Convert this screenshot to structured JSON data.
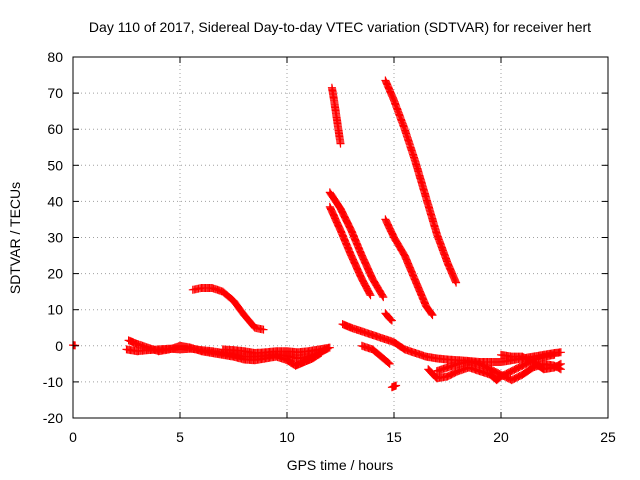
{
  "chart_data": {
    "type": "scatter",
    "title": "Day 110 of 2017, Sidereal Day-to-day VTEC variation (SDTVAR) for receiver hert",
    "xlabel": "GPS time / hours",
    "ylabel": "SDTVAR / TECUs",
    "xlim": [
      0,
      25
    ],
    "ylim": [
      -20,
      80
    ],
    "xticks": [
      0,
      5,
      10,
      15,
      20,
      25
    ],
    "yticks": [
      -20,
      -10,
      0,
      10,
      20,
      30,
      40,
      50,
      60,
      70,
      80
    ],
    "grid": true,
    "marker": "+",
    "color": "#ff0000",
    "series": [
      {
        "name": "isolated-near-zero",
        "points": [
          [
            0.0,
            0.2
          ],
          [
            0.1,
            0.1
          ]
        ]
      },
      {
        "name": "baseline-early-a",
        "points": [
          [
            2.5,
            -1.0
          ],
          [
            3.0,
            -1.5
          ],
          [
            3.5,
            -1.2
          ],
          [
            4.0,
            -1.0
          ],
          [
            4.5,
            -0.8
          ],
          [
            5.0,
            -1.0
          ],
          [
            5.5,
            -0.8
          ],
          [
            6.0,
            -1.2
          ],
          [
            6.5,
            -1.5
          ],
          [
            7.0,
            -2.0
          ],
          [
            7.5,
            -2.5
          ],
          [
            8.0,
            -3.0
          ],
          [
            8.5,
            -3.0
          ],
          [
            9.0,
            -2.8
          ],
          [
            9.5,
            -2.5
          ],
          [
            10.0,
            -2.8
          ],
          [
            10.5,
            -3.5
          ],
          [
            11.0,
            -3.0
          ],
          [
            11.5,
            -2.0
          ],
          [
            11.9,
            -0.8
          ]
        ]
      },
      {
        "name": "baseline-early-b",
        "points": [
          [
            2.6,
            1.5
          ],
          [
            3.0,
            0.5
          ],
          [
            3.5,
            -0.5
          ],
          [
            4.0,
            -1.5
          ],
          [
            4.5,
            -1.0
          ],
          [
            5.0,
            0.0
          ],
          [
            5.5,
            -0.5
          ],
          [
            6.0,
            -1.5
          ],
          [
            6.5,
            -2.0
          ],
          [
            7.0,
            -2.5
          ],
          [
            7.5,
            -3.0
          ],
          [
            8.0,
            -3.8
          ],
          [
            8.5,
            -4.0
          ],
          [
            9.0,
            -3.5
          ],
          [
            9.5,
            -3.0
          ],
          [
            10.0,
            -4.0
          ],
          [
            10.4,
            -5.5
          ],
          [
            10.8,
            -4.5
          ],
          [
            11.2,
            -3.5
          ],
          [
            11.6,
            -2.0
          ]
        ]
      },
      {
        "name": "baseline-early-c",
        "points": [
          [
            7.0,
            -1.0
          ],
          [
            7.5,
            -1.2
          ],
          [
            8.0,
            -1.5
          ],
          [
            8.5,
            -2.0
          ],
          [
            9.0,
            -1.8
          ],
          [
            9.5,
            -1.5
          ],
          [
            10.0,
            -1.5
          ],
          [
            10.5,
            -1.8
          ],
          [
            11.0,
            -1.5
          ],
          [
            11.5,
            -1.0
          ],
          [
            12.0,
            -0.5
          ]
        ]
      },
      {
        "name": "arc-morning",
        "points": [
          [
            5.6,
            15.5
          ],
          [
            6.0,
            16.0
          ],
          [
            6.5,
            16.0
          ],
          [
            7.0,
            15.0
          ],
          [
            7.5,
            12.5
          ],
          [
            8.0,
            8.5
          ],
          [
            8.5,
            5.0
          ],
          [
            8.9,
            4.5
          ]
        ]
      },
      {
        "name": "steep-short",
        "points": [
          [
            12.1,
            71.5
          ],
          [
            12.2,
            68.0
          ],
          [
            12.3,
            64.0
          ],
          [
            12.4,
            60.0
          ],
          [
            12.5,
            56.0
          ]
        ]
      },
      {
        "name": "descent-left-a",
        "points": [
          [
            12.0,
            42.5
          ],
          [
            12.5,
            38.0
          ],
          [
            13.0,
            32.0
          ],
          [
            13.5,
            25.0
          ],
          [
            14.0,
            18.5
          ],
          [
            14.5,
            13.5
          ]
        ]
      },
      {
        "name": "descent-left-b",
        "points": [
          [
            12.0,
            38.5
          ],
          [
            12.5,
            32.0
          ],
          [
            13.0,
            25.0
          ],
          [
            13.5,
            18.5
          ],
          [
            13.9,
            14.0
          ]
        ]
      },
      {
        "name": "descent-right-a",
        "points": [
          [
            14.6,
            73.5
          ],
          [
            15.0,
            68.0
          ],
          [
            15.5,
            60.0
          ],
          [
            16.0,
            51.0
          ],
          [
            16.5,
            41.0
          ],
          [
            17.0,
            31.0
          ],
          [
            17.5,
            23.0
          ],
          [
            17.9,
            17.5
          ]
        ]
      },
      {
        "name": "descent-right-b",
        "points": [
          [
            14.6,
            35.0
          ],
          [
            15.0,
            30.0
          ],
          [
            15.5,
            25.0
          ],
          [
            16.0,
            18.0
          ],
          [
            16.5,
            11.0
          ],
          [
            16.8,
            8.5
          ]
        ]
      },
      {
        "name": "small-cluster",
        "points": [
          [
            14.6,
            9.0
          ],
          [
            14.8,
            7.5
          ],
          [
            14.9,
            7.0
          ]
        ]
      },
      {
        "name": "baseline-midday",
        "points": [
          [
            12.6,
            6.0
          ],
          [
            13.0,
            5.0
          ],
          [
            13.5,
            4.0
          ],
          [
            14.0,
            3.0
          ],
          [
            14.5,
            2.0
          ],
          [
            15.0,
            1.0
          ],
          [
            15.5,
            -1.0
          ],
          [
            16.0,
            -2.0
          ],
          [
            16.5,
            -3.0
          ],
          [
            17.0,
            -3.5
          ],
          [
            17.5,
            -3.8
          ],
          [
            18.0,
            -4.0
          ],
          [
            18.5,
            -4.2
          ],
          [
            19.0,
            -4.5
          ],
          [
            19.5,
            -4.5
          ],
          [
            20.0,
            -4.5
          ],
          [
            20.5,
            -4.0
          ],
          [
            21.0,
            -3.5
          ],
          [
            21.5,
            -3.0
          ],
          [
            22.0,
            -2.5
          ],
          [
            22.5,
            -2.0
          ],
          [
            22.8,
            -1.8
          ]
        ]
      },
      {
        "name": "dip-midday",
        "points": [
          [
            13.5,
            0.0
          ],
          [
            14.0,
            -1.0
          ],
          [
            14.3,
            -2.5
          ],
          [
            14.6,
            -4.0
          ],
          [
            14.8,
            -5.0
          ]
        ]
      },
      {
        "name": "low-pair",
        "points": [
          [
            14.9,
            -11.5
          ],
          [
            15.1,
            -11.0
          ]
        ]
      },
      {
        "name": "baseline-evening-a",
        "points": [
          [
            16.6,
            -6.5
          ],
          [
            17.0,
            -9.0
          ],
          [
            17.5,
            -8.5
          ],
          [
            18.0,
            -7.0
          ],
          [
            18.5,
            -6.0
          ],
          [
            19.0,
            -7.0
          ],
          [
            19.5,
            -8.0
          ],
          [
            19.8,
            -9.5
          ],
          [
            20.0,
            -8.5
          ],
          [
            20.5,
            -7.0
          ],
          [
            21.0,
            -5.5
          ],
          [
            21.5,
            -4.0
          ],
          [
            22.0,
            -3.0
          ],
          [
            22.5,
            -2.5
          ]
        ]
      },
      {
        "name": "baseline-evening-b",
        "points": [
          [
            17.0,
            -7.0
          ],
          [
            17.5,
            -6.0
          ],
          [
            18.0,
            -5.0
          ],
          [
            18.5,
            -4.5
          ],
          [
            19.0,
            -5.0
          ],
          [
            19.5,
            -6.5
          ],
          [
            20.0,
            -8.0
          ],
          [
            20.5,
            -9.5
          ],
          [
            21.0,
            -8.0
          ],
          [
            21.5,
            -6.0
          ],
          [
            22.0,
            -5.0
          ],
          [
            22.5,
            -5.5
          ],
          [
            22.8,
            -6.5
          ]
        ]
      },
      {
        "name": "baseline-evening-c",
        "points": [
          [
            20.0,
            -2.5
          ],
          [
            20.5,
            -3.0
          ],
          [
            21.0,
            -3.0
          ],
          [
            21.5,
            -4.5
          ],
          [
            22.0,
            -6.5
          ],
          [
            22.5,
            -6.0
          ],
          [
            22.8,
            -5.0
          ]
        ]
      }
    ]
  }
}
